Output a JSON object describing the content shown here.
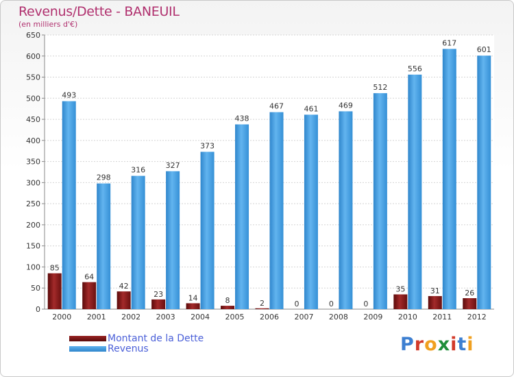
{
  "title": "Revenus/Dette - BANEUIL",
  "subtitle": "(en milliers d'€)",
  "colors": {
    "title": "#b0306e",
    "dette": "#7a1414",
    "revenus": "#3d9ae0",
    "legend_text": "#4a5fd8",
    "axis_text": "#333333"
  },
  "logo": {
    "letters": [
      "P",
      "r",
      "o",
      "x",
      "i",
      "t",
      "i"
    ],
    "colors": [
      "#3d7fd1",
      "#d23a2a",
      "#f0a020",
      "#1f8e3a",
      "#d23a2a",
      "#3d7fd1",
      "#f0a020"
    ]
  },
  "chart_data": {
    "type": "bar",
    "title": "Revenus/Dette - BANEUIL",
    "ylabel": "(en milliers d'€)",
    "categories": [
      "2000",
      "2001",
      "2002",
      "2003",
      "2004",
      "2005",
      "2006",
      "2007",
      "2008",
      "2009",
      "2010",
      "2011",
      "2012"
    ],
    "series": [
      {
        "name": "Montant de la Dette",
        "color": "#7a1414",
        "values": [
          85,
          64,
          42,
          23,
          14,
          8,
          2,
          0,
          0,
          0,
          35,
          31,
          26
        ]
      },
      {
        "name": "Revenus",
        "color": "#3d9ae0",
        "values": [
          493,
          298,
          316,
          327,
          373,
          438,
          467,
          461,
          469,
          512,
          556,
          617,
          601
        ]
      }
    ],
    "ylim": [
      0,
      650
    ],
    "yticks": [
      0,
      50,
      100,
      150,
      200,
      250,
      300,
      350,
      400,
      450,
      500,
      550,
      600,
      650
    ],
    "grid": true,
    "legend": "bottom-left"
  }
}
